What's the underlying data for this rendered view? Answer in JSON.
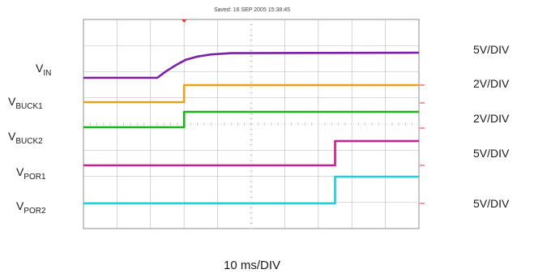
{
  "chart_data": {
    "type": "line",
    "title": "Saved: 16 SEP 2005 15:38:45",
    "timebase": "10 ms/DIV",
    "grid": true,
    "x_divisions": 10,
    "y_divisions": 8,
    "series": [
      {
        "name": "VIN",
        "main": "V",
        "sub": "IN",
        "scale": "5V/DIV",
        "color": "#7a1fa8",
        "x": [
          0,
          2.2,
          2.45,
          2.75,
          3.05,
          3.4,
          3.8,
          4.4,
          10
        ],
        "y": [
          0.0,
          0.0,
          0.25,
          0.5,
          0.72,
          0.85,
          0.93,
          0.98,
          1.0
        ]
      },
      {
        "name": "VBUCK1",
        "main": "V",
        "sub": "BUCK1",
        "scale": "2V/DIV",
        "color": "#e3a21f",
        "x": [
          0,
          3.0,
          3.0,
          10
        ],
        "y": [
          0,
          0,
          1,
          1
        ]
      },
      {
        "name": "VBUCK2",
        "main": "V",
        "sub": "BUCK2",
        "scale": "2V/DIV",
        "color": "#19b219",
        "x": [
          0,
          3.0,
          3.0,
          10
        ],
        "y": [
          0,
          0,
          1,
          1
        ]
      },
      {
        "name": "VPOR1",
        "main": "V",
        "sub": "POR1",
        "scale": "5V/DIV",
        "color": "#cc1f8e",
        "x": [
          0,
          7.5,
          7.5,
          10
        ],
        "y": [
          0,
          0,
          1,
          1
        ]
      },
      {
        "name": "VPOR2",
        "main": "V",
        "sub": "POR2",
        "scale": "5V/DIV",
        "color": "#1fd0d8",
        "x": [
          0,
          7.5,
          7.5,
          10
        ],
        "y": [
          0,
          0,
          1,
          1
        ]
      }
    ]
  },
  "colors": {
    "grid": "#b7b7b7",
    "frame": "#8c8c8c",
    "marker": "#e03030"
  }
}
